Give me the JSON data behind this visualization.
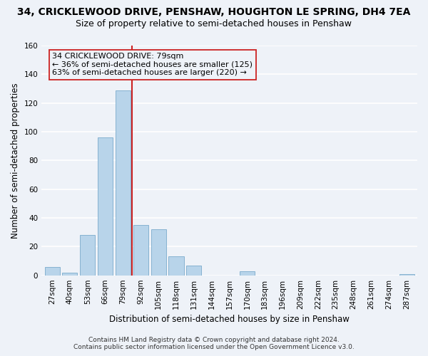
{
  "title": "34, CRICKLEWOOD DRIVE, PENSHAW, HOUGHTON LE SPRING, DH4 7EA",
  "subtitle": "Size of property relative to semi-detached houses in Penshaw",
  "xlabel": "Distribution of semi-detached houses by size in Penshaw",
  "ylabel": "Number of semi-detached properties",
  "bar_labels": [
    "27sqm",
    "40sqm",
    "53sqm",
    "66sqm",
    "79sqm",
    "92sqm",
    "105sqm",
    "118sqm",
    "131sqm",
    "144sqm",
    "157sqm",
    "170sqm",
    "183sqm",
    "196sqm",
    "209sqm",
    "222sqm",
    "235sqm",
    "248sqm",
    "261sqm",
    "274sqm",
    "287sqm"
  ],
  "bar_values": [
    6,
    2,
    28,
    96,
    129,
    35,
    32,
    13,
    7,
    0,
    0,
    3,
    0,
    0,
    0,
    0,
    0,
    0,
    0,
    0,
    1
  ],
  "bar_color": "#b8d4ea",
  "bar_edge_color": "#7aabcc",
  "vline_index": 4,
  "vline_color": "#cc2222",
  "ylim": [
    0,
    160
  ],
  "yticks": [
    0,
    20,
    40,
    60,
    80,
    100,
    120,
    140,
    160
  ],
  "annotation_line1": "34 CRICKLEWOOD DRIVE: 79sqm",
  "annotation_line2": "← 36% of semi-detached houses are smaller (125)",
  "annotation_line3": "63% of semi-detached houses are larger (220) →",
  "footer_line1": "Contains HM Land Registry data © Crown copyright and database right 2024.",
  "footer_line2": "Contains public sector information licensed under the Open Government Licence v3.0.",
  "bg_color": "#eef2f8",
  "grid_color": "#ffffff",
  "title_fontsize": 10,
  "subtitle_fontsize": 9,
  "axis_label_fontsize": 8.5,
  "tick_fontsize": 7.5,
  "footer_fontsize": 6.5
}
